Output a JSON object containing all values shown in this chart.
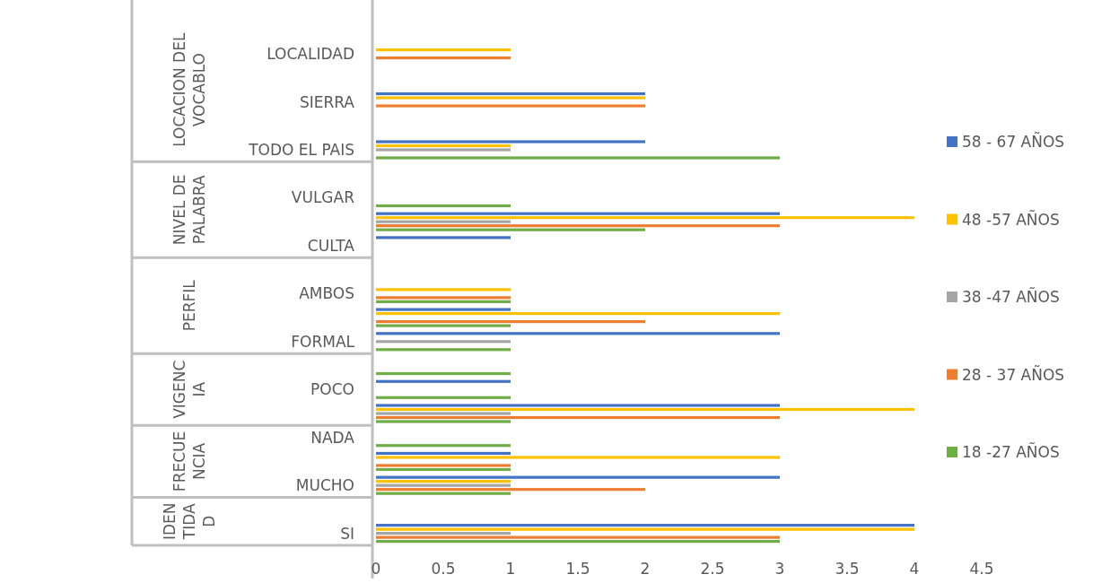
{
  "chart_data": {
    "type": "bar",
    "orientation": "horizontal",
    "categories": [
      null,
      "LOCALIDAD",
      null,
      "SIERRA",
      null,
      "TODO EL PAIS",
      null,
      "VULGAR",
      null,
      "CULTA",
      null,
      "AMBOS",
      null,
      "FORMAL",
      null,
      "POCO",
      null,
      "NADA",
      null,
      "MUCHO",
      null,
      "SI"
    ],
    "series": [
      {
        "name": "58 - 67 AÑOS",
        "color": "#4472c4",
        "values": [
          null,
          null,
          null,
          2,
          null,
          2,
          null,
          null,
          3,
          1,
          null,
          null,
          1,
          3,
          null,
          1,
          3,
          null,
          1,
          3,
          null,
          4
        ]
      },
      {
        "name": "48 -57 AÑOS",
        "color": "#ffc000",
        "values": [
          null,
          1,
          null,
          2,
          null,
          1,
          null,
          null,
          4,
          null,
          null,
          1,
          3,
          null,
          null,
          null,
          4,
          null,
          3,
          1,
          null,
          4
        ]
      },
      {
        "name": "38 -47 AÑOS",
        "color": "#a5a5a5",
        "values": [
          null,
          null,
          null,
          null,
          null,
          1,
          null,
          null,
          1,
          null,
          null,
          null,
          null,
          1,
          null,
          null,
          1,
          null,
          null,
          1,
          null,
          1
        ]
      },
      {
        "name": "28 - 37 AÑOS",
        "color": "#ed7d31",
        "values": [
          null,
          1,
          null,
          2,
          null,
          null,
          null,
          null,
          3,
          null,
          null,
          1,
          2,
          null,
          null,
          null,
          3,
          null,
          1,
          2,
          null,
          3
        ]
      },
      {
        "name": "18 -27 AÑOS",
        "color": "#70ad47",
        "values": [
          null,
          null,
          null,
          null,
          null,
          3,
          null,
          1,
          2,
          null,
          null,
          1,
          1,
          1,
          1,
          1,
          1,
          1,
          1,
          1,
          null,
          3
        ]
      }
    ],
    "xlim": [
      0,
      4.5
    ],
    "xticks": [
      0,
      0.5,
      1,
      1.5,
      2,
      2.5,
      3,
      3.5,
      4,
      4.5
    ],
    "grid": false,
    "legend": "right",
    "annotations": [
      "LOCACION DEL VOCABLO",
      "NIVEL DE PALABRA",
      "PERFIL",
      "VIGENCIA",
      "FRECUENCIA",
      "IDENTIDAD"
    ]
  }
}
